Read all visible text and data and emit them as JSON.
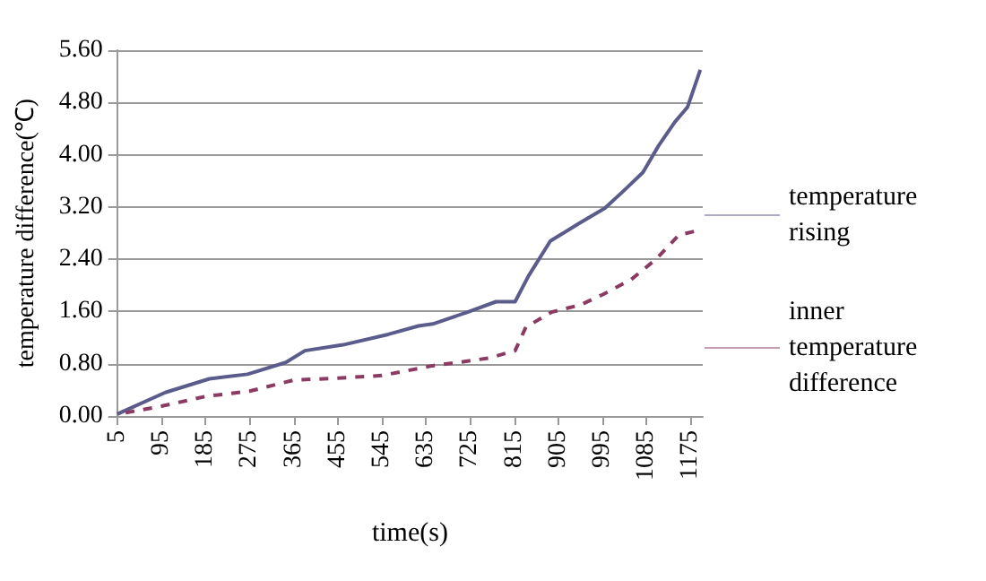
{
  "chart_data": {
    "type": "line",
    "xlabel": "time(s)",
    "ylabel": "temperature difference(℃)",
    "xlim": [
      5,
      1200
    ],
    "xticks": [
      5,
      95,
      185,
      275,
      365,
      455,
      545,
      635,
      725,
      815,
      905,
      995,
      1085,
      1175
    ],
    "ylim": [
      0,
      5.6
    ],
    "yticks": [
      {
        "value": 0,
        "label": "0.00"
      },
      {
        "value": 0.8,
        "label": "0.80"
      },
      {
        "value": 1.6,
        "label": "1.60"
      },
      {
        "value": 2.4,
        "label": "2.40"
      },
      {
        "value": 3.2,
        "label": "3.20"
      },
      {
        "value": 4.0,
        "label": "4.00"
      },
      {
        "value": 4.8,
        "label": "4.80"
      },
      {
        "value": 5.6,
        "label": "5.60"
      }
    ],
    "grid": "y",
    "legend": "right",
    "marker": "none",
    "series": [
      {
        "name": "temperature rising",
        "color": "#5b5b8c",
        "line_style": "solid",
        "x": [
          5,
          14,
          103,
          193,
          271,
          349,
          388,
          466,
          558,
          620,
          649,
          720,
          778,
          817,
          844,
          889,
          948,
          1000,
          1039,
          1078,
          1110,
          1143,
          1169,
          1195
        ],
        "values": [
          0.03,
          0.06,
          0.36,
          0.57,
          0.64,
          0.82,
          1.0,
          1.09,
          1.25,
          1.38,
          1.41,
          1.59,
          1.75,
          1.75,
          2.14,
          2.68,
          2.95,
          3.18,
          3.45,
          3.73,
          4.14,
          4.5,
          4.73,
          5.3
        ]
      },
      {
        "name": "inner temperature difference",
        "color": "#8b3a62",
        "line_style": "dashed",
        "x": [
          22,
          95,
          185,
          275,
          365,
          455,
          545,
          649,
          720,
          765,
          817,
          839,
          891,
          950,
          996,
          1054,
          1106,
          1151,
          1195
        ],
        "values": [
          0.05,
          0.15,
          0.3,
          0.38,
          0.55,
          0.58,
          0.62,
          0.77,
          0.84,
          0.89,
          1.0,
          1.36,
          1.59,
          1.7,
          1.86,
          2.09,
          2.41,
          2.77,
          2.85
        ]
      }
    ]
  }
}
